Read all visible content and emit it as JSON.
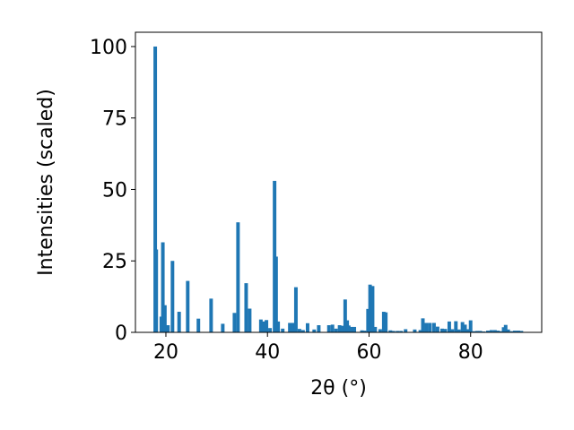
{
  "chart_data": {
    "type": "bar",
    "xlabel": "2θ (°)",
    "ylabel": "Intensities (scaled)",
    "xlim": [
      14,
      94
    ],
    "ylim": [
      0,
      105
    ],
    "xticks": [
      20,
      40,
      60,
      80
    ],
    "yticks": [
      0,
      25,
      50,
      75,
      100
    ],
    "grid": false,
    "bar_color": "#1f77b4",
    "bar_width_deg": 0.7,
    "x": [
      17.9,
      18.1,
      19.1,
      19.4,
      19.8,
      20.4,
      21.3,
      22.6,
      24.3,
      26.4,
      28.9,
      31.2,
      33.5,
      34.2,
      35.8,
      36.5,
      38.7,
      39.2,
      39.8,
      40.5,
      41.4,
      41.7,
      42.1,
      43.0,
      44.4,
      45.0,
      45.6,
      46.3,
      47.0,
      47.9,
      49.2,
      50.1,
      52.1,
      52.8,
      53.5,
      54.2,
      54.7,
      55.3,
      55.7,
      56.0,
      56.5,
      57.1,
      58.6,
      59.1,
      59.8,
      60.2,
      60.7,
      61.2,
      62.2,
      62.9,
      63.3,
      64.2,
      64.8,
      65.6,
      66.3,
      67.2,
      69.0,
      70.1,
      70.6,
      71.3,
      72.0,
      72.8,
      73.5,
      74.4,
      75.0,
      75.8,
      76.4,
      77.1,
      77.7,
      78.4,
      78.9,
      79.5,
      80.0,
      80.7,
      81.3,
      81.9,
      82.6,
      83.4,
      84.1,
      84.8,
      85.4,
      86.0,
      86.5,
      86.9,
      87.4,
      88.1,
      88.7,
      89.4,
      90.0
    ],
    "values": [
      100,
      29,
      5.5,
      31.5,
      9.5,
      2.5,
      25,
      7.2,
      18,
      4.8,
      11.8,
      3.0,
      6.8,
      38.5,
      17.2,
      8.3,
      4.5,
      3.8,
      4.3,
      1.5,
      53,
      26.5,
      3.8,
      1.3,
      3.3,
      3.3,
      15.8,
      1.2,
      0.8,
      3.2,
      1.0,
      2.5,
      2.5,
      2.7,
      1.3,
      2.5,
      2.3,
      11.5,
      4.2,
      2.4,
      1.9,
      1.9,
      0.7,
      0.6,
      8.2,
      16.7,
      16.2,
      1.9,
      1.1,
      7.2,
      7.0,
      0.7,
      0.5,
      0.5,
      0.5,
      1.1,
      1.0,
      0.8,
      4.9,
      3.3,
      3.3,
      3.3,
      2.0,
      1.3,
      1.2,
      3.8,
      1.1,
      3.9,
      1.0,
      3.6,
      2.7,
      1.1,
      4.2,
      0.4,
      0.5,
      0.5,
      0.3,
      0.6,
      0.8,
      0.8,
      0.6,
      0.4,
      1.8,
      2.6,
      1.0,
      0.4,
      0.6,
      0.6,
      0.5
    ]
  }
}
